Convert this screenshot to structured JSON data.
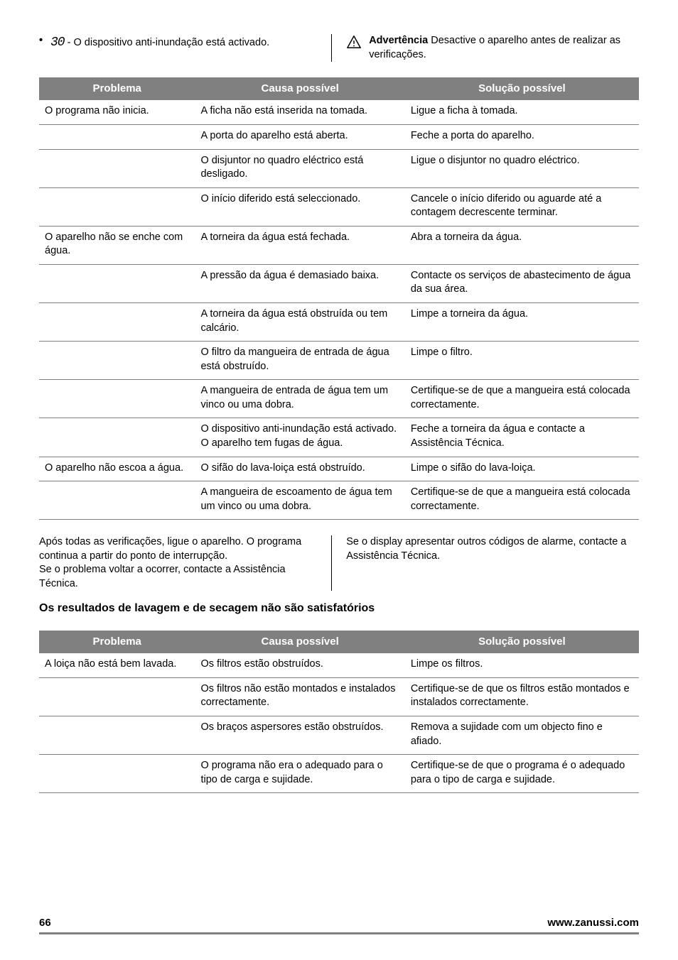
{
  "top": {
    "digits": "30",
    "bullet_text": " - O dispositivo anti-inundação está activado.",
    "warning_bold": "Advertência",
    "warning_text": " Desactive o aparelho antes de realizar as verificações."
  },
  "table1": {
    "headers": [
      "Problema",
      "Causa possível",
      "Solução possível"
    ],
    "rows": [
      [
        "O programa não inicia.",
        "A ficha não está inserida na tomada.",
        "Ligue a ficha à tomada."
      ],
      [
        "",
        "A porta do aparelho está aberta.",
        "Feche a porta do aparelho."
      ],
      [
        "",
        "O disjuntor no quadro eléctrico está desligado.",
        "Ligue o disjuntor no quadro eléctrico."
      ],
      [
        "",
        "O início diferido está seleccionado.",
        "Cancele o início diferido ou aguarde até a contagem decrescente terminar."
      ],
      [
        "O aparelho não se enche com água.",
        "A torneira da água está fechada.",
        "Abra a torneira da água."
      ],
      [
        "",
        "A pressão da água é demasiado baixa.",
        "Contacte os serviços de abastecimento de água da sua área."
      ],
      [
        "",
        "A torneira da água está obstruída ou tem calcário.",
        "Limpe a torneira da água."
      ],
      [
        "",
        "O filtro da mangueira de entrada de água está obstruído.",
        "Limpe o filtro."
      ],
      [
        "",
        "A mangueira de entrada de água tem um vinco ou uma dobra.",
        "Certifique-se de que a mangueira está colocada correctamente."
      ],
      [
        "",
        "O dispositivo anti-inundação está activado. O aparelho tem fugas de água.",
        "Feche a torneira da água e contacte a Assistência Técnica."
      ],
      [
        "O aparelho não escoa a água.",
        "O sifão do lava-loiça está obstruído.",
        "Limpe o sifão do lava-loiça."
      ],
      [
        "",
        "A mangueira de escoamento de água tem um vinco ou uma dobra.",
        "Certifique-se de que a mangueira está colocada correctamente."
      ]
    ]
  },
  "mid": {
    "left1": "Após todas as verificações, ligue o aparelho. O programa continua a partir do ponto de interrupção.",
    "left2": "Se o problema voltar a ocorrer, contacte a Assistência Técnica.",
    "right": "Se o display apresentar outros códigos de alarme, contacte a Assistência Técnica."
  },
  "heading2": "Os resultados de lavagem e de secagem não são satisfatórios",
  "table2": {
    "headers": [
      "Problema",
      "Causa possível",
      "Solução possível"
    ],
    "rows": [
      [
        "A loiça não está bem lavada.",
        "Os filtros estão obstruídos.",
        "Limpe os filtros."
      ],
      [
        "",
        "Os filtros não estão montados e instalados correctamente.",
        "Certifique-se de que os filtros estão montados e instalados correctamente."
      ],
      [
        "",
        "Os braços aspersores estão obstruídos.",
        "Remova a sujidade com um objecto fino e afiado."
      ],
      [
        "",
        "O programa não era o adequado para o tipo de carga e sujidade.",
        "Certifique-se de que o programa é o adequado para o tipo de carga e sujidade."
      ]
    ]
  },
  "footer": {
    "page": "66",
    "url": "www.zanussi.com"
  },
  "colors": {
    "header_bg": "#808080",
    "header_fg": "#ffffff",
    "border": "#808080"
  }
}
